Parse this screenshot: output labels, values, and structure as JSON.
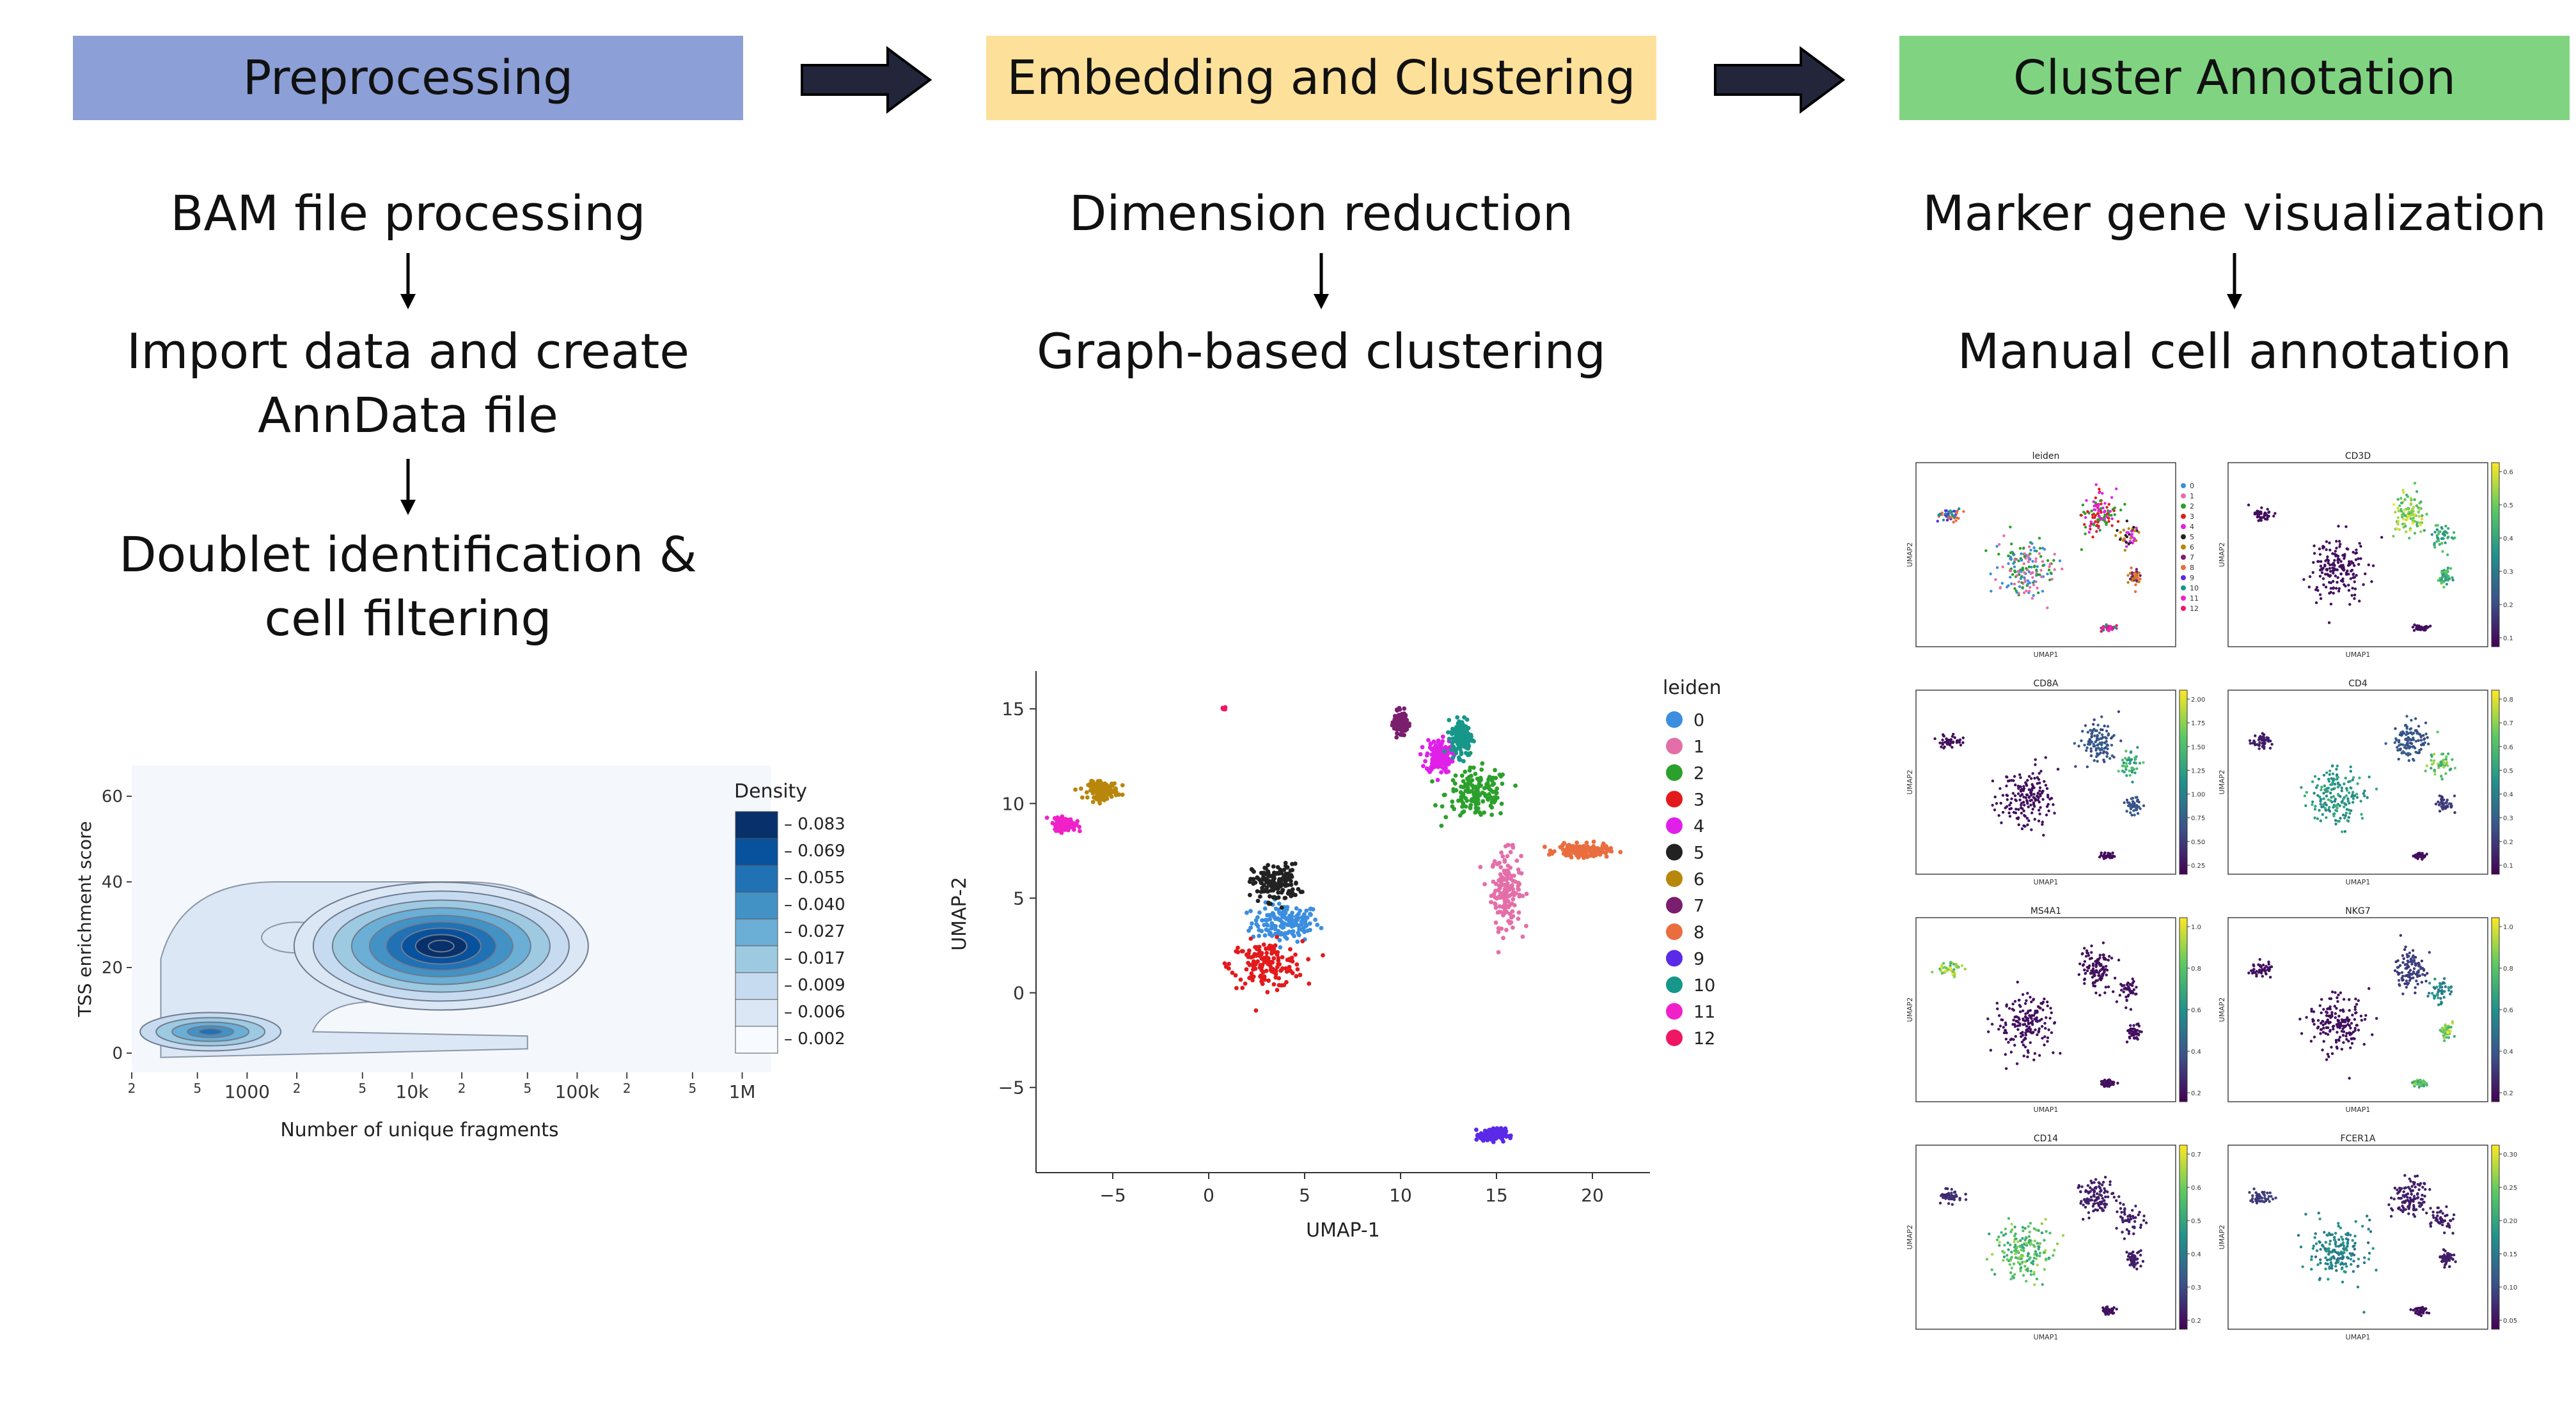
{
  "colors": {
    "preprocessing": "#8c9fd6",
    "embedding": "#fde09a",
    "annotation": "#80d481",
    "arrow": "#23263a"
  },
  "stages": [
    {
      "title": "Preprocessing",
      "steps": [
        "BAM file processing",
        "Import data and create AnnData file",
        "Doublet identification & cell filtering"
      ]
    },
    {
      "title": "Embedding and Clustering",
      "steps": [
        "Dimension reduction",
        "Graph-based clustering"
      ]
    },
    {
      "title": "Cluster Annotation",
      "steps": [
        "Marker gene visualization",
        "Manual cell annotation"
      ]
    }
  ],
  "density_plot": {
    "type": "contour",
    "xlabel": "Number of unique fragments",
    "ylabel": "TSS enrichment score",
    "x_scale": "log",
    "x_ticks": [
      "2",
      "5",
      "1000",
      "2",
      "5",
      "10k",
      "2",
      "5",
      "100k",
      "2",
      "5",
      "1M"
    ],
    "y_ticks": [
      "0",
      "20",
      "40",
      "60"
    ],
    "legend_title": "Density",
    "legend_levels": [
      "0.083",
      "0.069",
      "0.055",
      "0.040",
      "0.027",
      "0.017",
      "0.009",
      "0.006",
      "0.002"
    ],
    "legend_colors": [
      "#08306b",
      "#08519c",
      "#2171b5",
      "#4292c6",
      "#6baed6",
      "#9ecae1",
      "#c6dbef",
      "#dbe7f5",
      "#f7fbff"
    ]
  },
  "umap_plot": {
    "type": "scatter",
    "xlabel": "UMAP-1",
    "ylabel": "UMAP-2",
    "x_ticks": [
      "−5",
      "0",
      "5",
      "10",
      "15",
      "20"
    ],
    "y_ticks": [
      "15",
      "10",
      "5",
      "0",
      "−5"
    ],
    "xlim": [
      -9,
      23
    ],
    "ylim": [
      -9.5,
      17
    ],
    "legend_title": "leiden",
    "clusters": [
      {
        "label": "0",
        "color": "#3b8ee0",
        "cx": 4,
        "cy": 3.7
      },
      {
        "label": "1",
        "color": "#e46fa8",
        "cx": 15.5,
        "cy": 5.5
      },
      {
        "label": "2",
        "color": "#2ca02c",
        "cx": 14,
        "cy": 10.5
      },
      {
        "label": "3",
        "color": "#e31a1c",
        "cx": 3,
        "cy": 1.5
      },
      {
        "label": "4",
        "color": "#e020e8",
        "cx": 12,
        "cy": 12.5
      },
      {
        "label": "5",
        "color": "#222222",
        "cx": 3.5,
        "cy": 5.8
      },
      {
        "label": "6",
        "color": "#b8860b",
        "cx": -5.5,
        "cy": 10.7
      },
      {
        "label": "7",
        "color": "#7a1e6e",
        "cx": 10,
        "cy": 14.3
      },
      {
        "label": "8",
        "color": "#e96d3e",
        "cx": 19.5,
        "cy": 7.5
      },
      {
        "label": "9",
        "color": "#5b2ae8",
        "cx": 14.8,
        "cy": -7.5
      },
      {
        "label": "10",
        "color": "#16978a",
        "cx": 13.2,
        "cy": 13.5
      },
      {
        "label": "11",
        "color": "#f021c8",
        "cx": -7.5,
        "cy": 8.9
      },
      {
        "label": "12",
        "color": "#ef1665",
        "cx": 0.8,
        "cy": 15
      }
    ]
  },
  "feature_panels": {
    "axis_x": "UMAP1",
    "axis_y": "UMAP2",
    "titles": [
      "leiden",
      "CD3D",
      "CD8A",
      "CD4",
      "MS4A1",
      "NKG7",
      "CD14",
      "FCER1A"
    ],
    "leiden_legend": [
      "0",
      "1",
      "2",
      "3",
      "4",
      "5",
      "6",
      "7",
      "8",
      "9",
      "10",
      "11",
      "12"
    ],
    "colorbars": [
      [
        "0.6",
        "0.5",
        "0.4",
        "0.3",
        "0.2",
        "0.1"
      ],
      [
        "2.00",
        "1.75",
        "1.50",
        "1.25",
        "1.00",
        "0.75",
        "0.50",
        "0.25"
      ],
      [
        "0.8",
        "0.7",
        "0.6",
        "0.5",
        "0.4",
        "0.3",
        "0.2",
        "0.1"
      ],
      [
        "1.0",
        "0.8",
        "0.6",
        "0.4",
        "0.2"
      ],
      [
        "1.0",
        "0.8",
        "0.6",
        "0.4",
        "0.2"
      ],
      [
        "0.7",
        "0.6",
        "0.5",
        "0.4",
        "0.3",
        "0.2"
      ],
      [
        "0.30",
        "0.25",
        "0.20",
        "0.15",
        "0.10",
        "0.05"
      ]
    ]
  }
}
